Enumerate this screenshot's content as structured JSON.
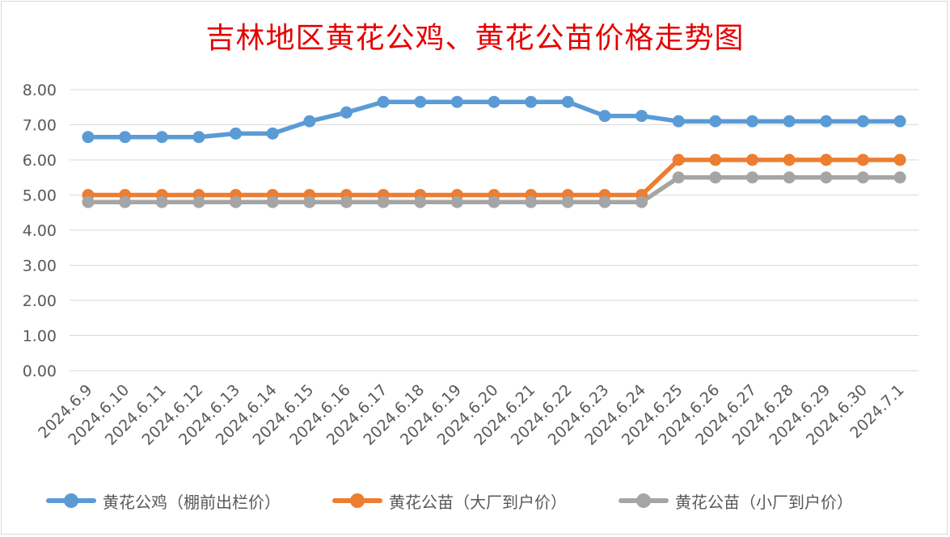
{
  "chart_data": {
    "type": "line",
    "title": "吉林地区黄花公鸡、黄花公苗价格走势图",
    "xlabel": "",
    "ylabel": "",
    "ylim": [
      0,
      8
    ],
    "ytick_labels": [
      "0.00",
      "1.00",
      "2.00",
      "3.00",
      "4.00",
      "5.00",
      "6.00",
      "7.00",
      "8.00"
    ],
    "grid": "horizontal",
    "legend_position": "bottom",
    "categories": [
      "2024.6.9",
      "2024.6.10",
      "2024.6.11",
      "2024.6.12",
      "2024.6.13",
      "2024.6.14",
      "2024.6.15",
      "2024.6.16",
      "2024.6.17",
      "2024.6.18",
      "2024.6.19",
      "2024.6.20",
      "2024.6.21",
      "2024.6.22",
      "2024.6.23",
      "2024.6.24",
      "2024.6.25",
      "2024.6.26",
      "2024.6.27",
      "2024.6.28",
      "2024.6.29",
      "2024.6.30",
      "2024.7.1"
    ],
    "series": [
      {
        "name": "黄花公鸡（棚前出栏价）",
        "color": "#5b9bd5",
        "values": [
          6.65,
          6.65,
          6.65,
          6.65,
          6.75,
          6.75,
          7.1,
          7.35,
          7.65,
          7.65,
          7.65,
          7.65,
          7.65,
          7.65,
          7.25,
          7.25,
          7.1,
          7.1,
          7.1,
          7.1,
          7.1,
          7.1,
          7.1
        ]
      },
      {
        "name": "黄花公苗（大厂到户价）",
        "color": "#ed7d31",
        "values": [
          5.0,
          5.0,
          5.0,
          5.0,
          5.0,
          5.0,
          5.0,
          5.0,
          5.0,
          5.0,
          5.0,
          5.0,
          5.0,
          5.0,
          5.0,
          5.0,
          6.0,
          6.0,
          6.0,
          6.0,
          6.0,
          6.0,
          6.0
        ]
      },
      {
        "name": "黄花公苗（小厂到户价）",
        "color": "#a5a5a5",
        "values": [
          4.8,
          4.8,
          4.8,
          4.8,
          4.8,
          4.8,
          4.8,
          4.8,
          4.8,
          4.8,
          4.8,
          4.8,
          4.8,
          4.8,
          4.8,
          4.8,
          5.5,
          5.5,
          5.5,
          5.5,
          5.5,
          5.5,
          5.5
        ]
      }
    ]
  }
}
